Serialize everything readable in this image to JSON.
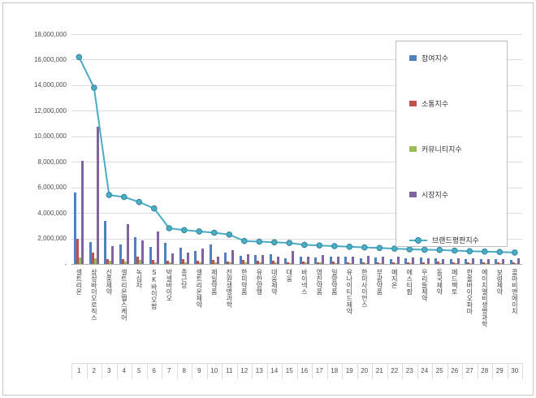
{
  "chart_data": {
    "type": "bar+line",
    "categories": [
      "셀트리온",
      "삼성바이오로직스",
      "신풍제약",
      "셀트리온헬스케어",
      "녹십자",
      "SK바이오팜",
      "박셀바이오",
      "종근당",
      "셀트리온제약",
      "제일약품",
      "진원생명과학",
      "한미약품",
      "유한양행",
      "대웅제약",
      "대웅",
      "바이넥스",
      "영진약품",
      "일양약품",
      "유나이티드제약",
      "한미사이언스",
      "부광약품",
      "메지온",
      "에스티팜",
      "우리들제약",
      "동국제약",
      "메드팩토",
      "한올바이오파마",
      "에이치엘비생명과학",
      "보령제약",
      "콜마비앤에이치"
    ],
    "ranks": [
      "1",
      "2",
      "3",
      "4",
      "5",
      "6",
      "7",
      "8",
      "9",
      "10",
      "11",
      "12",
      "13",
      "14",
      "15",
      "16",
      "17",
      "18",
      "19",
      "20",
      "21",
      "22",
      "23",
      "24",
      "25",
      "26",
      "27",
      "28",
      "29",
      "30"
    ],
    "series": [
      {
        "name": "참여지수",
        "type": "bar",
        "color": "#4F81BD",
        "values": [
          5600000,
          1700000,
          3400000,
          1550000,
          2100000,
          1350000,
          1650000,
          1250000,
          1000000,
          1500000,
          900000,
          650000,
          700000,
          750000,
          450000,
          600000,
          500000,
          550000,
          600000,
          450000,
          500000,
          400000,
          450000,
          500000,
          450000,
          400000,
          350000,
          370000,
          390000,
          300000
        ]
      },
      {
        "name": "소통지수",
        "type": "bar",
        "color": "#C0504D",
        "values": [
          2000000,
          900000,
          350000,
          400000,
          600000,
          300000,
          250000,
          350000,
          250000,
          300000,
          200000,
          300000,
          250000,
          250000,
          150000,
          200000,
          150000,
          200000,
          150000,
          150000,
          150000,
          150000,
          150000,
          140000,
          200000,
          150000,
          150000,
          150000,
          150000,
          100000
        ]
      },
      {
        "name": "커뮤니티지수",
        "type": "bar",
        "color": "#9BBB59",
        "values": [
          500000,
          450000,
          250000,
          200000,
          300000,
          150000,
          100000,
          150000,
          100000,
          100000,
          100000,
          100000,
          100000,
          100000,
          50000,
          100000,
          100000,
          50000,
          50000,
          50000,
          50000,
          50000,
          50000,
          30000,
          50000,
          50000,
          50000,
          50000,
          50000,
          50000
        ]
      },
      {
        "name": "시장지수",
        "type": "bar",
        "color": "#8064A2",
        "values": [
          8100000,
          10750000,
          1400000,
          3100000,
          1850000,
          2550000,
          800000,
          900000,
          1200000,
          550000,
          1100000,
          750000,
          700000,
          600000,
          1000000,
          600000,
          700000,
          600000,
          550000,
          650000,
          550000,
          600000,
          500000,
          450000,
          400000,
          450000,
          450000,
          400000,
          350000,
          450000
        ]
      },
      {
        "name": "브랜드평판지수",
        "type": "line",
        "color": "#4BACC6",
        "marker_border": "#31859B",
        "values": [
          16200000,
          13800000,
          5400000,
          5250000,
          4850000,
          4350000,
          2800000,
          2650000,
          2550000,
          2450000,
          2300000,
          1800000,
          1750000,
          1700000,
          1650000,
          1500000,
          1450000,
          1400000,
          1350000,
          1300000,
          1250000,
          1200000,
          1150000,
          1120000,
          1100000,
          1050000,
          1000000,
          970000,
          940000,
          900000
        ]
      }
    ],
    "ylim": [
      0,
      18000000
    ],
    "y_tick_labels": [
      "-",
      "2,000,000",
      "4,000,000",
      "6,000,000",
      "8,000,000",
      "10,000,000",
      "12,000,000",
      "14,000,000",
      "16,000,000",
      "18,000,000"
    ],
    "grid": true,
    "legend_position": "top-right"
  }
}
